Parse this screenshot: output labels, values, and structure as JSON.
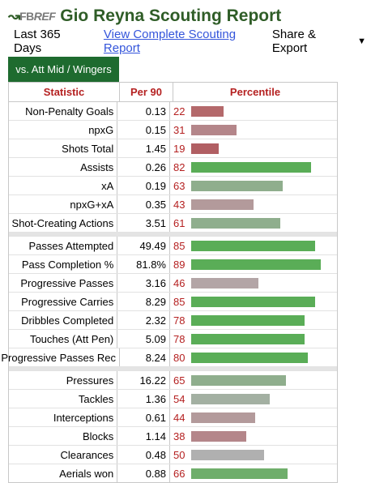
{
  "header": {
    "logo_glyph": "↝",
    "logo_fb": "FB",
    "logo_ref": "REF",
    "title": "Gio Reyna Scouting Report"
  },
  "subnav": {
    "period": "Last 365 Days",
    "link": "View Complete Scouting Report",
    "share": "Share & Export",
    "caret": "▼"
  },
  "tab": {
    "label": "vs. Att Mid / Wingers"
  },
  "table": {
    "headers": {
      "statistic": "Statistic",
      "per90": "Per 90",
      "percentile": "Percentile"
    },
    "colors": {
      "high": "#5aad57",
      "mid_high": "#8fae8d",
      "neutral": "#b0b0b0",
      "mid_low": "#b39a9b",
      "low": "#b4696b"
    },
    "groups": [
      [
        {
          "stat": "Non-Penalty Goals",
          "per90": "0.13",
          "pct": "22",
          "color": "#b4696b"
        },
        {
          "stat": "npxG",
          "per90": "0.15",
          "pct": "31",
          "color": "#b4868a"
        },
        {
          "stat": "Shots Total",
          "per90": "1.45",
          "pct": "19",
          "color": "#b15f63"
        },
        {
          "stat": "Assists",
          "per90": "0.26",
          "pct": "82",
          "color": "#5aad57"
        },
        {
          "stat": "xA",
          "per90": "0.19",
          "pct": "63",
          "color": "#8fae8d"
        },
        {
          "stat": "npxG+xA",
          "per90": "0.35",
          "pct": "43",
          "color": "#b39a9b"
        },
        {
          "stat": "Shot-Creating Actions",
          "per90": "3.51",
          "pct": "61",
          "color": "#8fae8d"
        }
      ],
      [
        {
          "stat": "Passes Attempted",
          "per90": "49.49",
          "pct": "85",
          "color": "#5aad57"
        },
        {
          "stat": "Pass Completion %",
          "per90": "81.8%",
          "pct": "89",
          "color": "#5aad57"
        },
        {
          "stat": "Progressive Passes",
          "per90": "3.16",
          "pct": "46",
          "color": "#b3a5a6"
        },
        {
          "stat": "Progressive Carries",
          "per90": "8.29",
          "pct": "85",
          "color": "#5aad57"
        },
        {
          "stat": "Dribbles Completed",
          "per90": "2.32",
          "pct": "78",
          "color": "#5aad57"
        },
        {
          "stat": "Touches (Att Pen)",
          "per90": "5.09",
          "pct": "78",
          "color": "#5aad57"
        },
        {
          "stat": "Progressive Passes Rec",
          "per90": "8.24",
          "pct": "80",
          "color": "#5aad57"
        }
      ],
      [
        {
          "stat": "Pressures",
          "per90": "16.22",
          "pct": "65",
          "color": "#8fae8d"
        },
        {
          "stat": "Tackles",
          "per90": "1.36",
          "pct": "54",
          "color": "#a3b0a2"
        },
        {
          "stat": "Interceptions",
          "per90": "0.61",
          "pct": "44",
          "color": "#b39a9b"
        },
        {
          "stat": "Blocks",
          "per90": "1.14",
          "pct": "38",
          "color": "#b4868a"
        },
        {
          "stat": "Clearances",
          "per90": "0.48",
          "pct": "50",
          "color": "#b0b0b0"
        },
        {
          "stat": "Aerials won",
          "per90": "0.88",
          "pct": "66",
          "color": "#6fae6b"
        }
      ]
    ]
  }
}
